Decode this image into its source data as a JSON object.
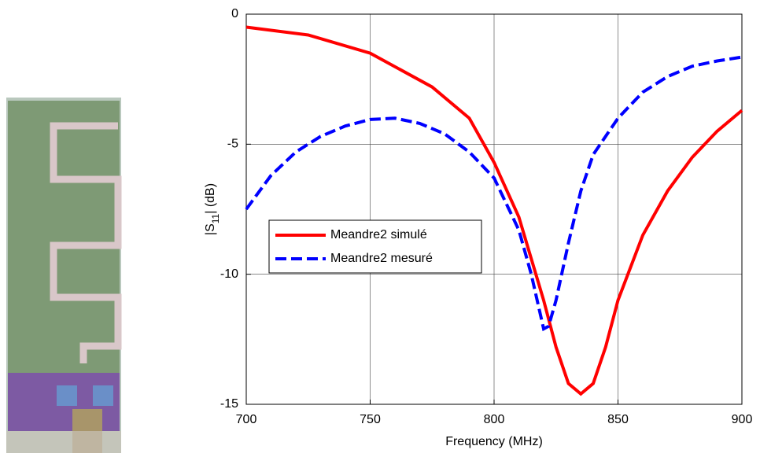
{
  "chart_data": {
    "type": "line",
    "xlabel": "Frequency (MHz)",
    "ylabel_parts": [
      "|S",
      "11",
      "| (dB)"
    ],
    "xlim": [
      700,
      900
    ],
    "xticks": [
      700,
      750,
      800,
      850,
      900
    ],
    "ylim": [
      -15,
      0
    ],
    "yticks": [
      0,
      -5,
      -10,
      -15
    ],
    "grid": true,
    "legend": "left",
    "series": [
      {
        "name": "Meandre2 simulé",
        "color": "#ff0000",
        "dash": "solid",
        "x": [
          700,
          725,
          750,
          775,
          790,
          800,
          810,
          820,
          825,
          830,
          835,
          840,
          845,
          850,
          860,
          870,
          880,
          890,
          900
        ],
        "values": [
          -0.5,
          -0.8,
          -1.5,
          -2.8,
          -4,
          -5.7,
          -7.8,
          -11,
          -12.8,
          -14.2,
          -14.6,
          -14.2,
          -12.8,
          -11,
          -8.5,
          -6.8,
          -5.5,
          -4.5,
          -3.7
        ]
      },
      {
        "name": "Meandre2 mesuré",
        "color": "#0000ff",
        "dash": "dashed",
        "x": [
          700,
          710,
          720,
          730,
          740,
          750,
          760,
          770,
          780,
          790,
          800,
          810,
          815,
          820,
          822,
          825,
          830,
          835,
          840,
          850,
          860,
          870,
          880,
          890,
          900
        ],
        "values": [
          -7.5,
          -6.2,
          -5.3,
          -4.7,
          -4.3,
          -4.05,
          -4.0,
          -4.2,
          -4.6,
          -5.3,
          -6.3,
          -8.3,
          -10,
          -12.1,
          -12.0,
          -11,
          -8.8,
          -6.8,
          -5.4,
          -4.0,
          -3.0,
          -2.4,
          -2.0,
          -1.8,
          -1.65
        ]
      }
    ]
  }
}
